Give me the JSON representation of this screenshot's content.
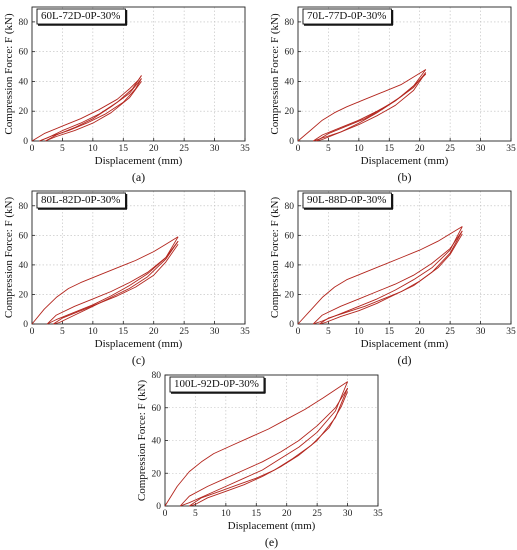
{
  "colors": {
    "curve": "#b3261e",
    "grid": "#bdbdbd",
    "frame": "#222222"
  },
  "chart_data": [
    {
      "type": "line",
      "label": "60L-72D-0P-30%",
      "caption": "(a)",
      "xlabel": "Displacement (mm)",
      "ylabel": "Compression Force: F (kN)",
      "xlim": [
        0,
        35
      ],
      "ylim": [
        0,
        90
      ],
      "xticks": [
        0,
        5,
        10,
        15,
        20,
        25,
        30,
        35
      ],
      "yticks": [
        0,
        20,
        40,
        60,
        80
      ],
      "grid": true,
      "series": [
        {
          "x": [
            0,
            2,
            5,
            8,
            11,
            14,
            16,
            17.5,
            18
          ],
          "y": [
            0,
            5,
            10,
            15,
            21,
            28,
            35,
            41,
            44
          ]
        },
        {
          "x": [
            18,
            16.5,
            14,
            11,
            8,
            5,
            2.5,
            1.2
          ],
          "y": [
            44,
            35,
            26,
            18,
            12,
            7,
            2,
            0
          ]
        },
        {
          "x": [
            1.2,
            3,
            6,
            9,
            12,
            15,
            17,
            18
          ],
          "y": [
            0,
            3,
            7,
            12,
            18,
            26,
            35,
            42
          ]
        },
        {
          "x": [
            18,
            16,
            13,
            10,
            7,
            4,
            2.2
          ],
          "y": [
            42,
            32,
            23,
            15,
            9,
            4,
            0
          ]
        },
        {
          "x": [
            2.2,
            4,
            7,
            10,
            13,
            16,
            18
          ],
          "y": [
            0,
            3,
            7,
            12,
            19,
            29,
            40
          ]
        }
      ]
    },
    {
      "type": "line",
      "label": "70L-77D-0P-30%",
      "caption": "(b)",
      "xlabel": "Displacement (mm)",
      "ylabel": "Compression Force: F (kN)",
      "xlim": [
        0,
        35
      ],
      "ylim": [
        0,
        90
      ],
      "xticks": [
        0,
        5,
        10,
        15,
        20,
        25,
        30,
        35
      ],
      "yticks": [
        0,
        20,
        40,
        60,
        80
      ],
      "grid": true,
      "series": [
        {
          "x": [
            0,
            2,
            4,
            6,
            8,
            11,
            14,
            17,
            19,
            21
          ],
          "y": [
            0,
            7,
            14,
            19,
            23,
            28,
            33,
            38,
            43,
            48
          ]
        },
        {
          "x": [
            21,
            19,
            16,
            13,
            10,
            7,
            4,
            2.5
          ],
          "y": [
            48,
            37,
            27,
            19,
            12,
            6,
            2,
            0
          ]
        },
        {
          "x": [
            2.5,
            4,
            7,
            10,
            13,
            16,
            19,
            21
          ],
          "y": [
            0,
            4,
            9,
            14,
            20,
            27,
            36,
            46
          ]
        },
        {
          "x": [
            21,
            19,
            16,
            13,
            10,
            7,
            4,
            3
          ],
          "y": [
            46,
            34,
            24,
            17,
            11,
            6,
            1,
            0
          ]
        },
        {
          "x": [
            3,
            5,
            8,
            11,
            14,
            17,
            19,
            21
          ],
          "y": [
            0,
            5,
            10,
            15,
            22,
            30,
            37,
            45
          ]
        }
      ]
    },
    {
      "type": "line",
      "label": "80L-82D-0P-30%",
      "caption": "(c)",
      "xlabel": "Displacement (mm)",
      "ylabel": "Compression Force: F (kN)",
      "xlim": [
        0,
        35
      ],
      "ylim": [
        0,
        90
      ],
      "xticks": [
        0,
        5,
        10,
        15,
        20,
        25,
        30,
        35
      ],
      "yticks": [
        0,
        20,
        40,
        60,
        80
      ],
      "grid": true,
      "series": [
        {
          "x": [
            0,
            2,
            4,
            6,
            8,
            11,
            14,
            17,
            20,
            22,
            24
          ],
          "y": [
            0,
            10,
            18,
            24,
            28,
            33,
            38,
            43,
            49,
            54,
            59
          ]
        },
        {
          "x": [
            24,
            22,
            19,
            16,
            13,
            10,
            7,
            4,
            2.5
          ],
          "y": [
            59,
            45,
            34,
            26,
            19,
            13,
            8,
            3,
            0
          ]
        },
        {
          "x": [
            2.5,
            4,
            7,
            10,
            13,
            16,
            19,
            22,
            24
          ],
          "y": [
            0,
            6,
            12,
            17,
            22,
            28,
            35,
            45,
            56
          ]
        },
        {
          "x": [
            24,
            22,
            19,
            16,
            13,
            10,
            7,
            4.5,
            3.5
          ],
          "y": [
            56,
            44,
            32,
            24,
            18,
            12,
            6,
            1,
            0
          ]
        },
        {
          "x": [
            3.5,
            5,
            8,
            11,
            14,
            17,
            20,
            22,
            24
          ],
          "y": [
            0,
            4,
            9,
            14,
            19,
            25,
            33,
            42,
            54
          ]
        }
      ]
    },
    {
      "type": "line",
      "label": "90L-88D-0P-30%",
      "caption": "(d)",
      "xlabel": "Displacement (mm)",
      "ylabel": "Compression Force: F (kN)",
      "xlim": [
        0,
        35
      ],
      "ylim": [
        0,
        90
      ],
      "xticks": [
        0,
        5,
        10,
        15,
        20,
        25,
        30,
        35
      ],
      "yticks": [
        0,
        20,
        40,
        60,
        80
      ],
      "grid": true,
      "series": [
        {
          "x": [
            0,
            2,
            4,
            6,
            8,
            11,
            14,
            17,
            20,
            23,
            25,
            27
          ],
          "y": [
            0,
            9,
            18,
            25,
            30,
            35,
            40,
            45,
            50,
            56,
            61,
            66
          ]
        },
        {
          "x": [
            27,
            25,
            22,
            19,
            16,
            13,
            10,
            7,
            4,
            2.5
          ],
          "y": [
            66,
            50,
            38,
            30,
            23,
            17,
            12,
            7,
            2,
            0
          ]
        },
        {
          "x": [
            2.5,
            4,
            7,
            10,
            13,
            16,
            19,
            22,
            25,
            27
          ],
          "y": [
            0,
            6,
            12,
            17,
            22,
            27,
            33,
            41,
            51,
            63
          ]
        },
        {
          "x": [
            27,
            25,
            22,
            19,
            16,
            13,
            10,
            7,
            4.5,
            3.5
          ],
          "y": [
            63,
            48,
            35,
            26,
            20,
            14,
            9,
            5,
            1,
            0
          ]
        },
        {
          "x": [
            3.5,
            5,
            8,
            11,
            14,
            17,
            20,
            23,
            25,
            27
          ],
          "y": [
            0,
            4,
            8,
            12,
            17,
            22,
            29,
            38,
            47,
            61
          ]
        }
      ]
    },
    {
      "type": "line",
      "label": "100L-92D-0P-30%",
      "caption": "(e)",
      "xlabel": "Displacement (mm)",
      "ylabel": "Compression Force: F (kN)",
      "xlim": [
        0,
        35
      ],
      "ylim": [
        0,
        80
      ],
      "xticks": [
        0,
        5,
        10,
        15,
        20,
        25,
        30,
        35
      ],
      "yticks": [
        0,
        20,
        40,
        60,
        80
      ],
      "grid": true,
      "series": [
        {
          "x": [
            0,
            2,
            4,
            6,
            8,
            11,
            14,
            17,
            20,
            23,
            26,
            28,
            30
          ],
          "y": [
            0,
            12,
            21,
            27,
            32,
            37,
            42,
            47,
            53,
            59,
            66,
            71,
            76
          ]
        },
        {
          "x": [
            30,
            28,
            25,
            22,
            19,
            16,
            13,
            10,
            7,
            4,
            2.5
          ],
          "y": [
            76,
            58,
            45,
            36,
            29,
            22,
            17,
            12,
            7,
            2,
            0
          ]
        },
        {
          "x": [
            2.5,
            4,
            7,
            10,
            13,
            16,
            19,
            22,
            25,
            28,
            30
          ],
          "y": [
            0,
            6,
            12,
            17,
            22,
            27,
            33,
            40,
            49,
            60,
            72
          ]
        },
        {
          "x": [
            30,
            28,
            25,
            22,
            19,
            16,
            13,
            10,
            7,
            5,
            4
          ],
          "y": [
            72,
            54,
            40,
            31,
            24,
            18,
            13,
            9,
            5,
            1,
            0
          ]
        },
        {
          "x": [
            4,
            6,
            9,
            12,
            15,
            18,
            21,
            24,
            27,
            29,
            30
          ],
          "y": [
            0,
            5,
            9,
            13,
            17,
            22,
            29,
            37,
            48,
            61,
            70
          ]
        }
      ]
    }
  ]
}
